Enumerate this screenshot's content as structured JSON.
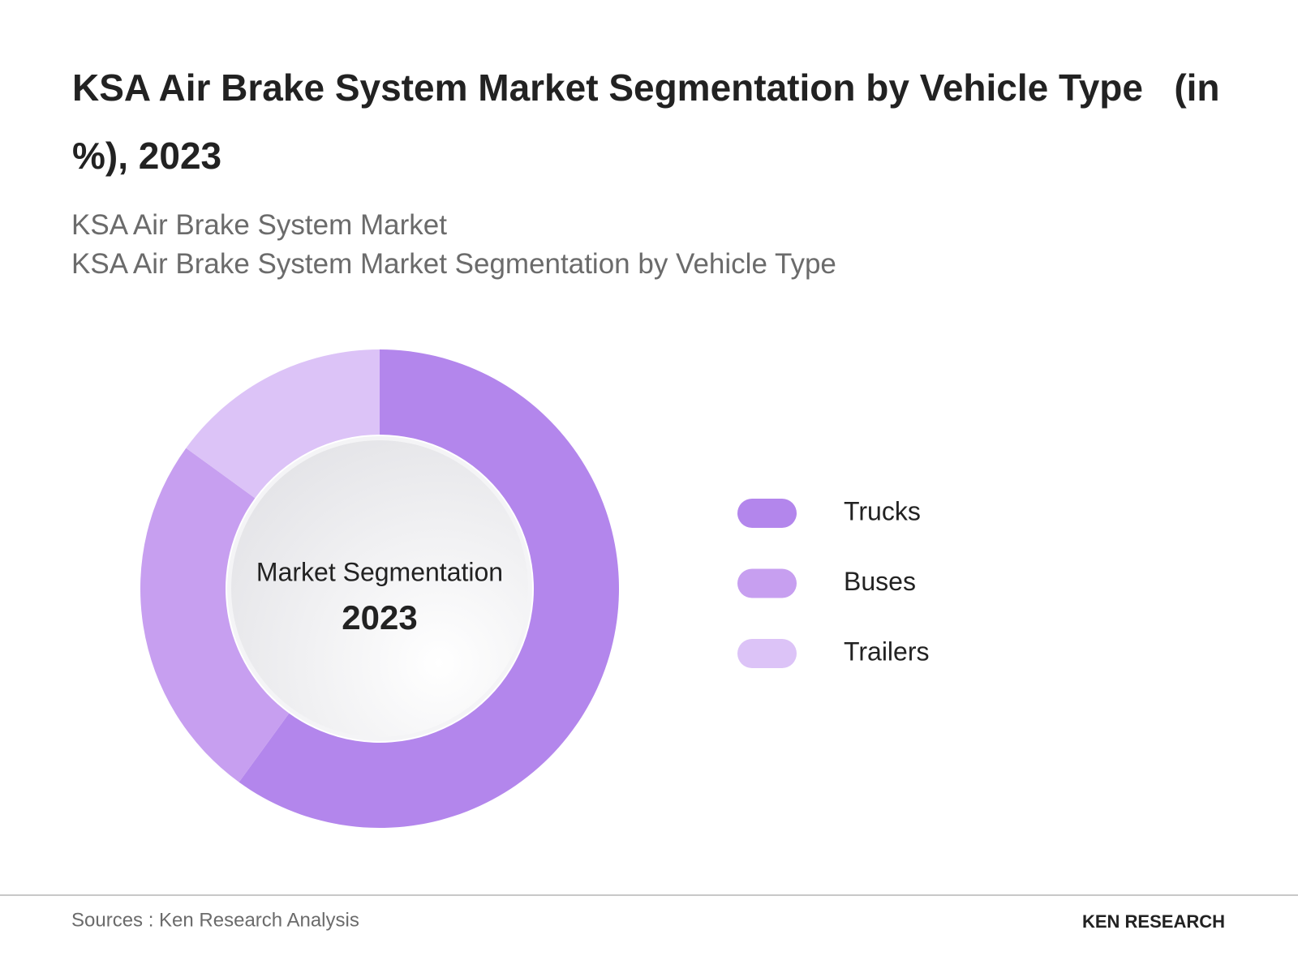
{
  "chart_data": {
    "type": "donut",
    "title": "KSA Air Brake System Market Segmentation by Vehicle Type   (in %), 2023",
    "subtitle": [
      "KSA Air Brake System Market",
      "KSA Air Brake System Market Segmentation by Vehicle Type"
    ],
    "center_label": "Market Segmentation",
    "center_year": "2023",
    "categories": [
      "Trucks",
      "Buses",
      "Trailers"
    ],
    "values": [
      60,
      25,
      15
    ],
    "colors": [
      "#b386ec",
      "#c79ff0",
      "#dcc3f7"
    ],
    "source": "Sources : Ken Research Analysis",
    "brand": "KEN RESEARCH"
  }
}
